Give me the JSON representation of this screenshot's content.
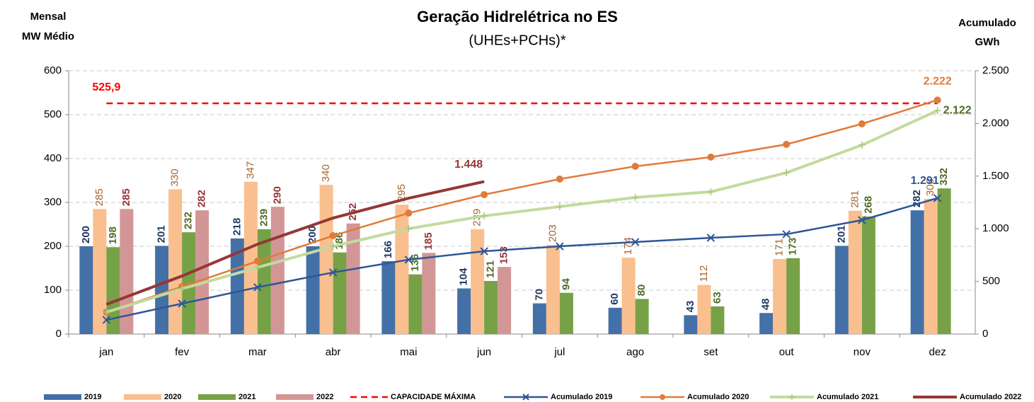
{
  "chart_data": {
    "type": "bar",
    "title": "Geração Hidrelétrica no ES",
    "subtitle": "(UHEs+PCHs)*",
    "y_label": [
      "Mensal",
      "MW Médio"
    ],
    "y2_label": [
      "Acumulado",
      "GWh"
    ],
    "categories": [
      "jan",
      "fev",
      "mar",
      "abr",
      "mai",
      "jun",
      "jul",
      "ago",
      "set",
      "out",
      "nov",
      "dez"
    ],
    "ylim": [
      0,
      600
    ],
    "yticks": [
      0,
      100,
      200,
      300,
      400,
      500,
      600
    ],
    "y2lim": [
      0,
      2500
    ],
    "y2ticks": [
      0,
      500,
      {
        "value": 1000,
        "label": "1.000"
      },
      {
        "value": 1500,
        "label": "1.500"
      },
      {
        "value": 2000,
        "label": "2.000"
      },
      {
        "value": 2500,
        "label": "2.500"
      }
    ],
    "grid": true,
    "legend": "bottom",
    "series": [
      {
        "name": "2019",
        "type": "bar",
        "color": "#4470a8",
        "label_color": "#1f3864",
        "values": [
          200,
          201,
          218,
          200,
          166,
          104,
          70,
          60,
          43,
          48,
          201,
          282
        ]
      },
      {
        "name": "2020",
        "type": "bar",
        "color": "#fabf8f",
        "label_color": "#a8652e",
        "values": [
          285,
          330,
          347,
          340,
          295,
          239,
          203,
          174,
          112,
          171,
          281,
          308
        ]
      },
      {
        "name": "2021",
        "type": "bar",
        "color": "#77a146",
        "label_color": "#4f6b26",
        "values": [
          198,
          232,
          239,
          186,
          136,
          121,
          94,
          80,
          63,
          173,
          268,
          332
        ]
      },
      {
        "name": "2022",
        "type": "bar",
        "color": "#d39696",
        "label_color": "#953735",
        "values": [
          285,
          282,
          290,
          252,
          185,
          153,
          null,
          null,
          null,
          null,
          null,
          null
        ]
      },
      {
        "name": "CAPACIDADE MÁXIMA",
        "type": "reference",
        "color": "#ff0000",
        "value": 525.9,
        "value_label": "525,9"
      },
      {
        "name": "Acumulado 2019",
        "type": "line",
        "axis": "y2",
        "marker": "x",
        "color": "#2f5597",
        "values": [
          134,
          289,
          444,
          585,
          706,
          786,
          833,
          874,
          914,
          948,
          1082,
          1291
        ],
        "value_labels": [
          null,
          null,
          null,
          null,
          null,
          null,
          null,
          null,
          null,
          null,
          null,
          "1.291"
        ]
      },
      {
        "name": "Acumulado 2020",
        "type": "line",
        "axis": "y2",
        "marker": "circle",
        "color": "#e07b39",
        "values": [
          208,
          450,
          692,
          934,
          1149,
          1324,
          1472,
          1593,
          1680,
          1801,
          1996,
          2222
        ],
        "value_labels": [
          null,
          null,
          null,
          null,
          null,
          null,
          null,
          null,
          null,
          null,
          null,
          "2.222"
        ]
      },
      {
        "name": "Acumulado 2021",
        "type": "line",
        "axis": "y2",
        "marker": "plus",
        "color": "#c3da9e",
        "values": [
          208,
          430,
          632,
          833,
          1001,
          1122,
          1210,
          1297,
          1351,
          1532,
          1794,
          2122
        ],
        "value_labels": [
          null,
          null,
          null,
          null,
          null,
          null,
          null,
          null,
          null,
          null,
          null,
          "2.122"
        ]
      },
      {
        "name": "Acumulado 2022",
        "type": "line",
        "axis": "y2",
        "marker": "none",
        "color": "#953735",
        "values": [
          282,
          551,
          853,
          1102,
          1290,
          1448,
          null,
          null,
          null,
          null,
          null,
          null
        ],
        "value_labels": [
          null,
          null,
          null,
          null,
          null,
          "1.448",
          null,
          null,
          null,
          null,
          null,
          null
        ]
      }
    ]
  }
}
